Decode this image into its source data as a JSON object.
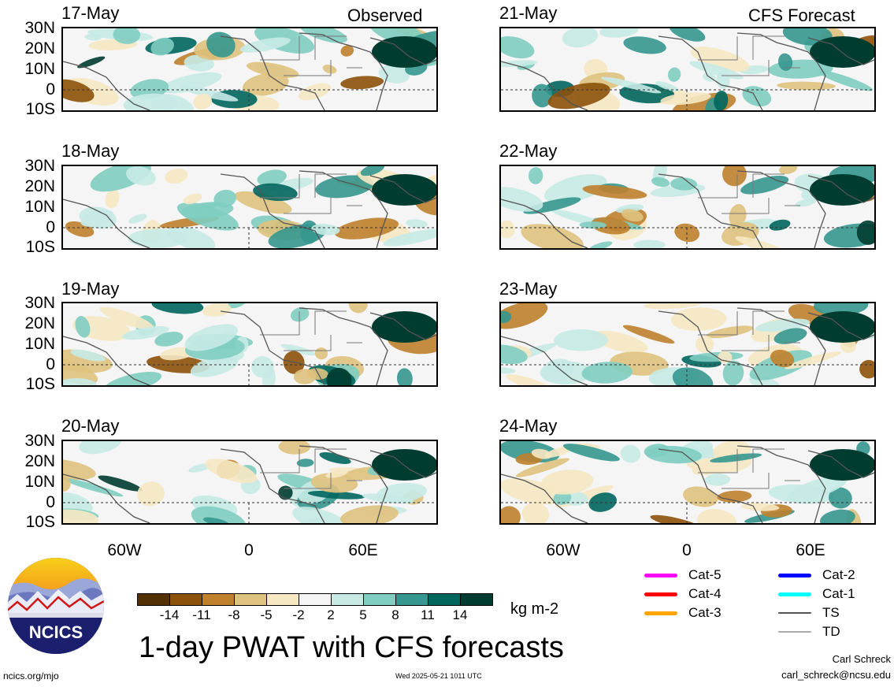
{
  "panels": {
    "left_header": "Observed",
    "right_header": "CFS Forecast",
    "left_dates": [
      "17-May",
      "18-May",
      "19-May",
      "20-May"
    ],
    "right_dates": [
      "21-May",
      "22-May",
      "23-May",
      "24-May"
    ],
    "lat_labels": [
      "30N",
      "20N",
      "10N",
      "0",
      "10S"
    ],
    "lon_labels": [
      "60W",
      "0",
      "60E"
    ]
  },
  "colorbar": {
    "tick_labels": [
      "-14",
      "-11",
      "-8",
      "-5",
      "-2",
      "2",
      "5",
      "8",
      "11",
      "14"
    ],
    "colors": [
      "#543005",
      "#8c510a",
      "#bf812d",
      "#dfc27d",
      "#f6e8c3",
      "#f5f5f5",
      "#c7eae5",
      "#80cdc1",
      "#35978f",
      "#01665e",
      "#003c30"
    ],
    "unit": "kg m-2"
  },
  "storm_legend": {
    "items": [
      {
        "label": "Cat-5",
        "color": "#ff00ff"
      },
      {
        "label": "Cat-4",
        "color": "#ff0000"
      },
      {
        "label": "Cat-3",
        "color": "#ffa500"
      },
      {
        "label": "Cat-2",
        "color": "#0000ff"
      },
      {
        "label": "Cat-1",
        "color": "#00ffff"
      },
      {
        "label": "TS",
        "color": "#555555"
      },
      {
        "label": "TD",
        "color": "#aaaaaa"
      }
    ]
  },
  "footer": {
    "title": "1-day PWAT with CFS forecasts",
    "logo_text": "NCICS",
    "url": "ncics.org/mjo",
    "timestamp": "Wed 2025-05-21 1011 UTC",
    "author": "Carl Schreck",
    "email": "carl_schreck@ncsu.edu"
  }
}
